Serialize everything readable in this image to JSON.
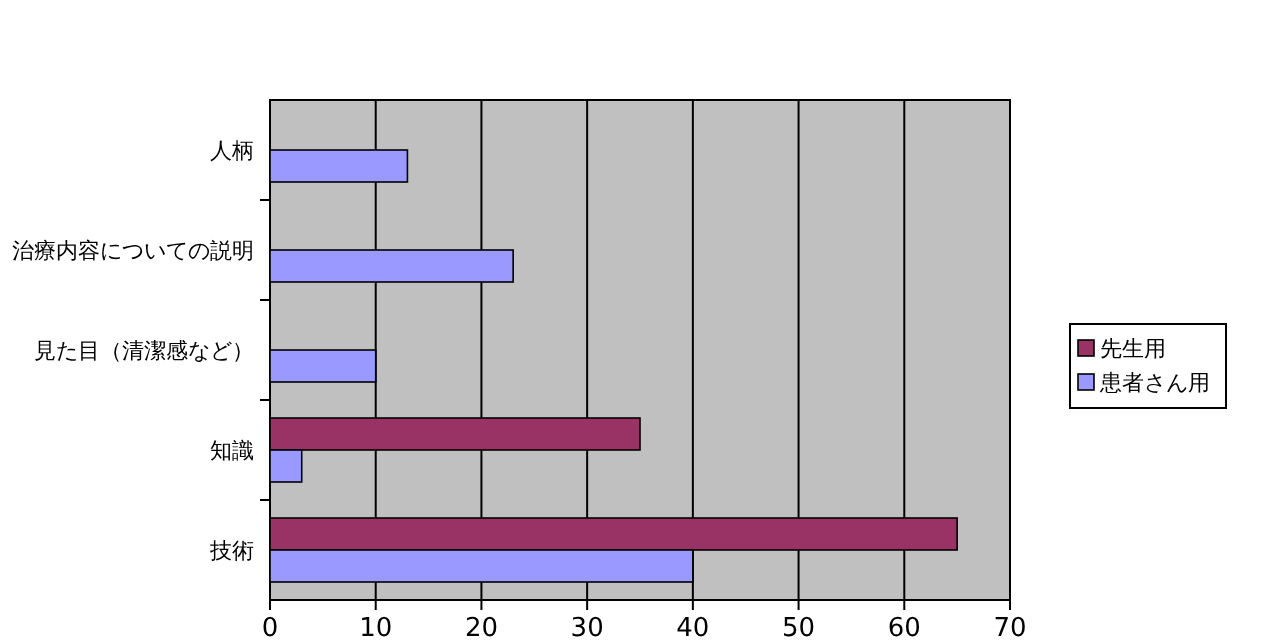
{
  "chart_data": {
    "type": "bar",
    "orientation": "horizontal",
    "categories": [
      "人柄",
      "治療内容についての説明",
      "見た目（清潔感など）",
      "知識",
      "技術"
    ],
    "series": [
      {
        "name": "先生用",
        "color": "#993366",
        "values": [
          0,
          0,
          0,
          35,
          65
        ]
      },
      {
        "name": "患者さん用",
        "color": "#9999ff",
        "values": [
          13,
          23,
          10,
          3,
          40
        ]
      }
    ],
    "xlim": [
      0,
      70
    ],
    "xticks": [
      0,
      10,
      20,
      30,
      40,
      50,
      60,
      70
    ],
    "grid": "x",
    "legend": "right"
  }
}
